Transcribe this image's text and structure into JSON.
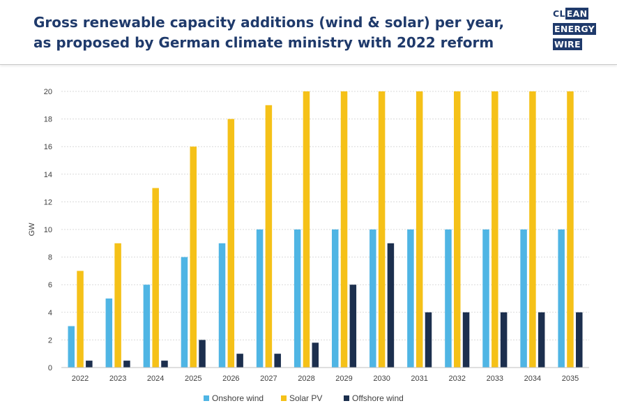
{
  "header": {
    "title_line1": "Gross renewable capacity additions (wind & solar) per year,",
    "title_line2": "as proposed by German climate ministry with 2022 reform",
    "logo": {
      "line1_dark": "CL",
      "line1_box": "EAN",
      "line2_box": "ENERGY",
      "line3_box": "WIRE"
    }
  },
  "colors": {
    "onshore": "#4fb5e4",
    "solar": "#f5c118",
    "offshore": "#1c2f4e",
    "grid": "#d9d9d9",
    "title": "#1f3a6b"
  },
  "chart_data": {
    "type": "bar",
    "title": "Gross renewable capacity additions (wind & solar) per year, as proposed by German climate ministry with 2022 reform",
    "xlabel": "",
    "ylabel": "GW",
    "ylim": [
      0,
      20
    ],
    "yticks": [
      0,
      2,
      4,
      6,
      8,
      10,
      12,
      14,
      16,
      18,
      20
    ],
    "grid": true,
    "legend_position": "bottom",
    "categories": [
      "2022",
      "2023",
      "2024",
      "2025",
      "2026",
      "2027",
      "2028",
      "2029",
      "2030",
      "2031",
      "2032",
      "2033",
      "2034",
      "2035"
    ],
    "series": [
      {
        "name": "Onshore wind",
        "color": "#4fb5e4",
        "values": [
          3,
          5,
          6,
          8,
          9,
          10,
          10,
          10,
          10,
          10,
          10,
          10,
          10,
          10
        ]
      },
      {
        "name": "Solar PV",
        "color": "#f5c118",
        "values": [
          7,
          9,
          13,
          16,
          18,
          19,
          20,
          20,
          20,
          20,
          20,
          20,
          20,
          20
        ]
      },
      {
        "name": "Offshore wind",
        "color": "#1c2f4e",
        "values": [
          0.5,
          0.5,
          0.5,
          2,
          1,
          1,
          1.8,
          6,
          9,
          4,
          4,
          4,
          4,
          4
        ]
      }
    ]
  }
}
